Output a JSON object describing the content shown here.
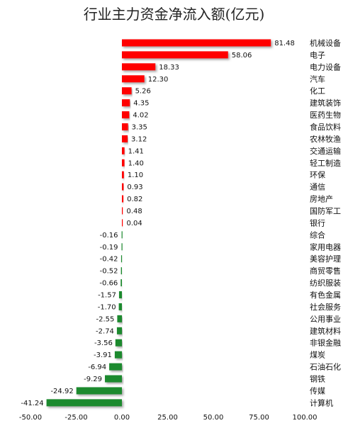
{
  "chart_data": {
    "type": "bar",
    "orientation": "horizontal",
    "title": "行业主力资金净流入额(亿元)",
    "xlabel": "",
    "ylabel": "",
    "xlim": [
      -50,
      100
    ],
    "xticks": [
      "-50.00",
      "-25.00",
      "0.00",
      "25.00",
      "50.00",
      "75.00",
      "100.00"
    ],
    "grid": false,
    "legend": "none",
    "positive_color": "#ff0000",
    "negative_color": "#1a8a2e",
    "categories": [
      "机械设备",
      "电子",
      "电力设备",
      "汽车",
      "化工",
      "建筑装饰",
      "医药生物",
      "食品饮料",
      "农林牧渔",
      "交通运输",
      "轻工制造",
      "环保",
      "通信",
      "房地产",
      "国防军工",
      "银行",
      "综合",
      "家用电器",
      "美容护理",
      "商贸零售",
      "纺织服装",
      "有色金属",
      "社会服务",
      "公用事业",
      "建筑材料",
      "非银金融",
      "煤炭",
      "石油石化",
      "钢铁",
      "传媒",
      "计算机"
    ],
    "values": [
      81.48,
      58.06,
      18.33,
      12.3,
      5.26,
      4.35,
      4.02,
      3.35,
      3.12,
      1.41,
      1.4,
      1.1,
      0.93,
      0.82,
      0.48,
      0.04,
      -0.16,
      -0.19,
      -0.42,
      -0.52,
      -0.66,
      -1.57,
      -1.7,
      -2.55,
      -2.74,
      -3.56,
      -3.91,
      -6.94,
      -9.29,
      -24.92,
      -41.24
    ],
    "value_labels": [
      "81.48",
      "58.06",
      "18.33",
      "12.30",
      "5.26",
      "4.35",
      "4.02",
      "3.35",
      "3.12",
      "1.41",
      "1.40",
      "1.10",
      "0.93",
      "0.82",
      "0.48",
      "0.04",
      "-0.16",
      "-0.19",
      "-0.42",
      "-0.52",
      "-0.66",
      "-1.57",
      "-1.70",
      "-2.55",
      "-2.74",
      "-3.56",
      "-3.91",
      "-6.94",
      "-9.29",
      "-24.92",
      "-41.24"
    ]
  }
}
